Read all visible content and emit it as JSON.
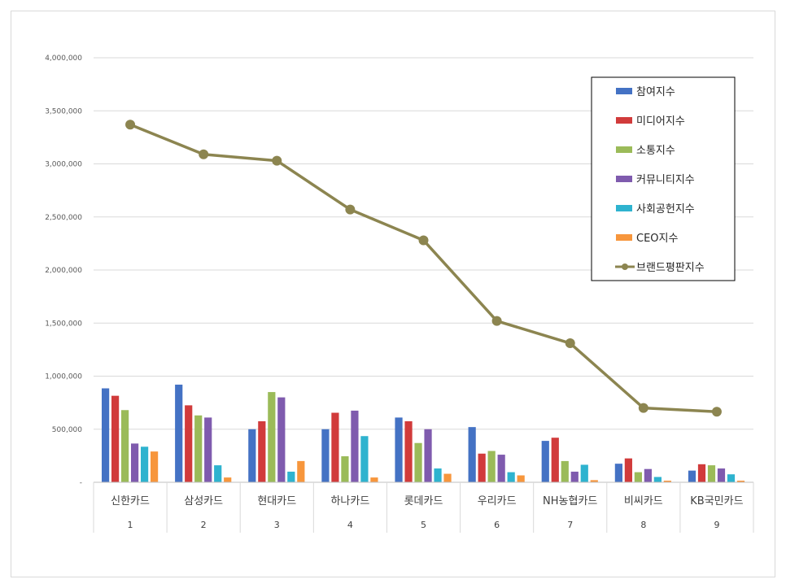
{
  "chart_data": {
    "type": "bar",
    "combo_line_series": "브랜드평판지수",
    "ylim": [
      0,
      4000000
    ],
    "yticks": [
      0,
      500000,
      1000000,
      1500000,
      2000000,
      2500000,
      3000000,
      3500000,
      4000000
    ],
    "ytick_labels": [
      "-",
      "500,000",
      "1,000,000",
      "1,500,000",
      "2,000,000",
      "2,500,000",
      "3,000,000",
      "3,500,000",
      "4,000,000"
    ],
    "grid": true,
    "legend_position": "top-right",
    "categories": [
      "신한카드",
      "삼성카드",
      "현대카드",
      "하나카드",
      "롯데카드",
      "우리카드",
      "NH농협카드",
      "비씨카드",
      "KB국민카드"
    ],
    "ranks": [
      "1",
      "2",
      "3",
      "4",
      "5",
      "6",
      "7",
      "8",
      "9"
    ],
    "series": [
      {
        "name": "참여지수",
        "type": "bar",
        "color": "#4472C4",
        "values": [
          885000,
          920000,
          500000,
          500000,
          610000,
          520000,
          390000,
          175000,
          110000
        ]
      },
      {
        "name": "미디어지수",
        "type": "bar",
        "color": "#D13B3B",
        "values": [
          815000,
          725000,
          575000,
          655000,
          575000,
          270000,
          420000,
          225000,
          170000
        ]
      },
      {
        "name": "소통지수",
        "type": "bar",
        "color": "#9BBB59",
        "values": [
          680000,
          630000,
          850000,
          245000,
          370000,
          295000,
          200000,
          95000,
          160000
        ]
      },
      {
        "name": "커뮤니티지수",
        "type": "bar",
        "color": "#7F5BAE",
        "values": [
          365000,
          610000,
          800000,
          675000,
          500000,
          260000,
          100000,
          125000,
          130000
        ]
      },
      {
        "name": "사회공헌지수",
        "type": "bar",
        "color": "#2EB3CF",
        "values": [
          335000,
          160000,
          100000,
          435000,
          130000,
          95000,
          165000,
          50000,
          75000
        ]
      },
      {
        "name": "CEO지수",
        "type": "bar",
        "color": "#F7963C",
        "values": [
          290000,
          45000,
          200000,
          45000,
          80000,
          65000,
          20000,
          15000,
          15000
        ]
      },
      {
        "name": "브랜드평판지수",
        "type": "line",
        "color": "#8C8550",
        "values": [
          3370000,
          3090000,
          3030000,
          2570000,
          2280000,
          1520000,
          1310000,
          700000,
          665000
        ]
      }
    ]
  }
}
